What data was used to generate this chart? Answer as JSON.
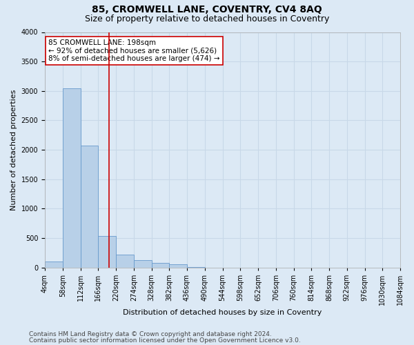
{
  "title": "85, CROMWELL LANE, COVENTRY, CV4 8AQ",
  "subtitle": "Size of property relative to detached houses in Coventry",
  "xlabel": "Distribution of detached houses by size in Coventry",
  "ylabel": "Number of detached properties",
  "bin_edges": [
    4,
    58,
    112,
    166,
    220,
    274,
    328,
    382,
    436,
    490,
    544,
    598,
    652,
    706,
    760,
    814,
    868,
    922,
    976,
    1030,
    1084
  ],
  "bar_heights": [
    100,
    3050,
    2070,
    530,
    220,
    120,
    80,
    50,
    10,
    0,
    0,
    0,
    0,
    0,
    0,
    0,
    0,
    0,
    0,
    0
  ],
  "bar_color": "#b8d0e8",
  "bar_edge_color": "#6699cc",
  "grid_color": "#c8d8e8",
  "background_color": "#dce9f5",
  "vline_x": 198,
  "vline_color": "#cc0000",
  "annotation_text": "85 CROMWELL LANE: 198sqm\n← 92% of detached houses are smaller (5,626)\n8% of semi-detached houses are larger (474) →",
  "annotation_box_color": "#ffffff",
  "annotation_box_edge_color": "#cc0000",
  "ylim": [
    0,
    4000
  ],
  "yticks": [
    0,
    500,
    1000,
    1500,
    2000,
    2500,
    3000,
    3500,
    4000
  ],
  "tick_labels": [
    "4sqm",
    "58sqm",
    "112sqm",
    "166sqm",
    "220sqm",
    "274sqm",
    "328sqm",
    "382sqm",
    "436sqm",
    "490sqm",
    "544sqm",
    "598sqm",
    "652sqm",
    "706sqm",
    "760sqm",
    "814sqm",
    "868sqm",
    "922sqm",
    "976sqm",
    "1030sqm",
    "1084sqm"
  ],
  "footer_line1": "Contains HM Land Registry data © Crown copyright and database right 2024.",
  "footer_line2": "Contains public sector information licensed under the Open Government Licence v3.0.",
  "title_fontsize": 10,
  "subtitle_fontsize": 9,
  "label_fontsize": 8,
  "tick_fontsize": 7,
  "annot_fontsize": 7.5,
  "footer_fontsize": 6.5
}
